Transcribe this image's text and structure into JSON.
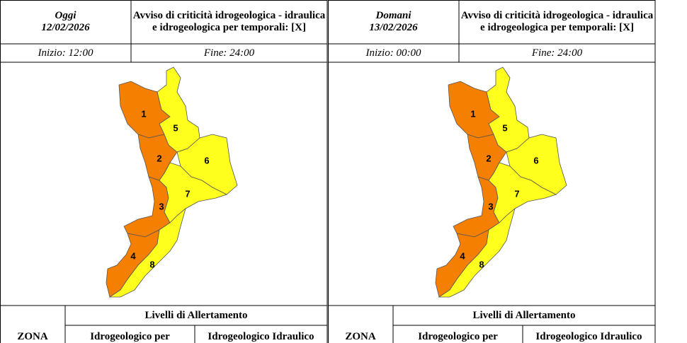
{
  "panels": [
    {
      "day": "Oggi",
      "date": "12/02/2026",
      "title": "Avviso di criticità idrogeologica - idraulica e idrogeologica per temporali: [X]",
      "start": "Inizio: 12:00",
      "end": "Fine: 24:00",
      "zones": [
        "1",
        "2",
        "3",
        "4",
        "5",
        "6",
        "7",
        "8"
      ],
      "table": {
        "zone_header": "ZONA",
        "levels_header": "Livelli di Allertamento",
        "col1": "Idrogeologico per",
        "col2": "Idrogeologico Idraulico"
      }
    },
    {
      "day": "Domani",
      "date": "13/02/2026",
      "title": "Avviso di criticità idrogeologica - idraulica e idrogeologica per temporali: [X]",
      "start": "Inizio: 00:00",
      "end": "Fine: 24:00",
      "zones": [
        "1",
        "2",
        "3",
        "4",
        "5",
        "6",
        "7",
        "8"
      ],
      "table": {
        "zone_header": "ZONA",
        "levels_header": "Livelli di Allertamento",
        "col1": "Idrogeologico per",
        "col2": "Idrogeologico Idraulico"
      }
    }
  ]
}
